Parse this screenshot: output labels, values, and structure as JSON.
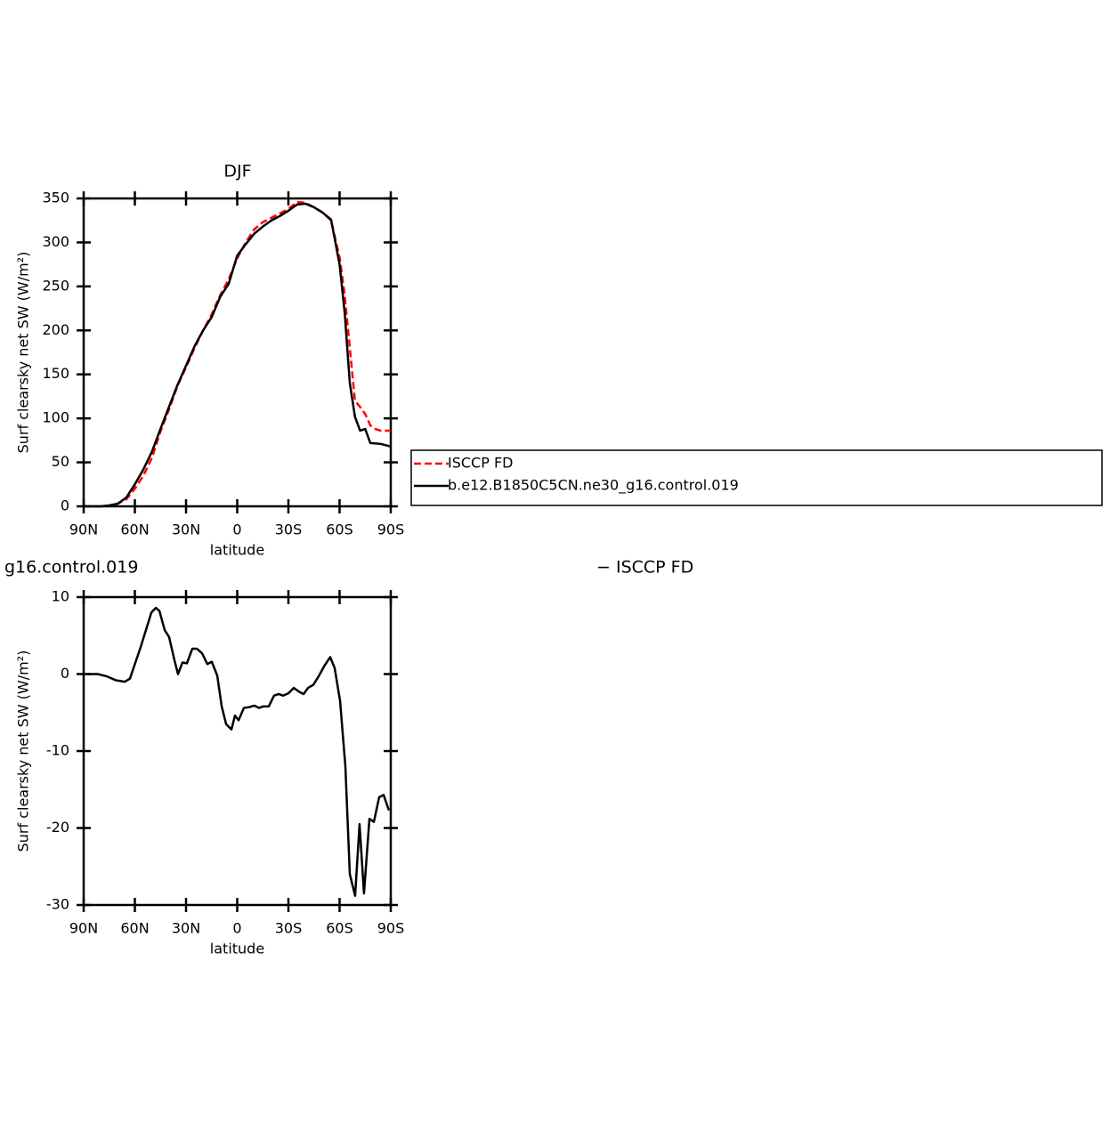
{
  "chart_data": [
    {
      "type": "line",
      "title": "DJF",
      "xlabel": "latitude",
      "ylabel": "Surf clearsky net SW (W/m²)",
      "xlim": [
        90,
        -90
      ],
      "xticks": [
        {
          "value": 90,
          "label": "90N"
        },
        {
          "value": 60,
          "label": "60N"
        },
        {
          "value": 30,
          "label": "30N"
        },
        0,
        {
          "value": -30,
          "label": "30S"
        },
        {
          "value": -60,
          "label": "60S"
        },
        {
          "value": -90,
          "label": "90S"
        }
      ],
      "ylim": [
        0,
        350
      ],
      "yticks": [
        0,
        50,
        100,
        150,
        200,
        250,
        300,
        350
      ],
      "series": [
        {
          "name": "ISCCP FD",
          "color": "#ff0000",
          "line_style": "dashed",
          "x": [
            90,
            85,
            80,
            75,
            70,
            65,
            60,
            55,
            50,
            45,
            40,
            35,
            30,
            25,
            20,
            15,
            10,
            5,
            0,
            -5,
            -10,
            -15,
            -20,
            -25,
            -30,
            -35,
            -40,
            -45,
            -50,
            -55,
            -60,
            -63,
            -66,
            -69,
            -72,
            -75,
            -78,
            -81,
            -84,
            -90
          ],
          "values": [
            0,
            0,
            0,
            1,
            3,
            8,
            20,
            35,
            55,
            85,
            110,
            137,
            158,
            180,
            200,
            218,
            240,
            258,
            282,
            300,
            315,
            323,
            328,
            333,
            338,
            346,
            345,
            340,
            334,
            325,
            283,
            240,
            180,
            120,
            113,
            105,
            92,
            88,
            86,
            86
          ]
        },
        {
          "name": "b.e12.B1850C5CN.ne30_g16.control.019",
          "color": "#000000",
          "line_style": "solid",
          "x": [
            90,
            85,
            80,
            75,
            70,
            65,
            60,
            55,
            50,
            45,
            40,
            35,
            30,
            25,
            20,
            15,
            10,
            5,
            0,
            -5,
            -10,
            -15,
            -20,
            -25,
            -30,
            -35,
            -40,
            -45,
            -50,
            -55,
            -60,
            -63,
            -66,
            -69,
            -72,
            -75,
            -78,
            -84,
            -90
          ],
          "values": [
            0,
            0,
            0,
            1,
            3,
            10,
            25,
            42,
            62,
            88,
            113,
            138,
            160,
            182,
            200,
            215,
            238,
            253,
            285,
            298,
            310,
            318,
            325,
            330,
            336,
            343,
            344,
            340,
            334,
            326,
            275,
            220,
            140,
            102,
            86,
            88,
            72,
            71,
            68
          ]
        }
      ]
    },
    {
      "type": "line",
      "title_parts": [
        "g16.control.019",
        "− ISCCP FD"
      ],
      "xlabel": "latitude",
      "ylabel": "Surf clearsky net SW (W/m²)",
      "xlim": [
        90,
        -90
      ],
      "xticks": [
        {
          "value": 90,
          "label": "90N"
        },
        {
          "value": 60,
          "label": "60N"
        },
        {
          "value": 30,
          "label": "30N"
        },
        0,
        {
          "value": -30,
          "label": "30S"
        },
        {
          "value": -60,
          "label": "60S"
        },
        {
          "value": -90,
          "label": "90S"
        }
      ],
      "ylim": [
        -30,
        10
      ],
      "yticks": [
        -30,
        -20,
        -10,
        0,
        10
      ],
      "color": "#000000",
      "x": [
        88.4,
        81.7,
        76.4,
        71.2,
        66,
        62.9,
        56.6,
        50.3,
        47.7,
        45.6,
        42.5,
        39.9,
        36.8,
        34.7,
        32.1,
        29.5,
        26.3,
        23.7,
        20.6,
        17.5,
        14.9,
        11.7,
        9.1,
        6.5,
        3.4,
        1.3,
        -0.8,
        -3.9,
        -7,
        -10.1,
        -12.8,
        -15.4,
        -18.5,
        -21.6,
        -24.3,
        -26.9,
        -30,
        -33.1,
        -36.3,
        -38.9,
        -41.5,
        -44.6,
        -47.7,
        -50.9,
        -54.5,
        -57.1,
        -60.3,
        -63.4,
        -66,
        -69.1,
        -71.7,
        -74.3,
        -77.5,
        -80.1,
        -83.2,
        -85.8,
        -88.9
      ],
      "values": [
        0,
        0,
        -0.3,
        -0.8,
        -1,
        -0.6,
        3.5,
        8,
        8.6,
        8.2,
        5.7,
        4.8,
        1.8,
        0,
        1.5,
        1.4,
        3.3,
        3.3,
        2.7,
        1.3,
        1.6,
        -0.2,
        -4.2,
        -6.5,
        -7.2,
        -5.4,
        -6,
        -4.4,
        -4.3,
        -4.1,
        -4.4,
        -4.2,
        -4.2,
        -2.8,
        -2.6,
        -2.8,
        -2.5,
        -1.8,
        -2.3,
        -2.6,
        -1.8,
        -1.4,
        -0.3,
        1,
        2.2,
        0.8,
        -3.5,
        -12,
        -26,
        -28.8,
        -19.5,
        -28.5,
        -18.8,
        -19.2,
        -16,
        -15.7,
        -17.7
      ]
    }
  ]
}
